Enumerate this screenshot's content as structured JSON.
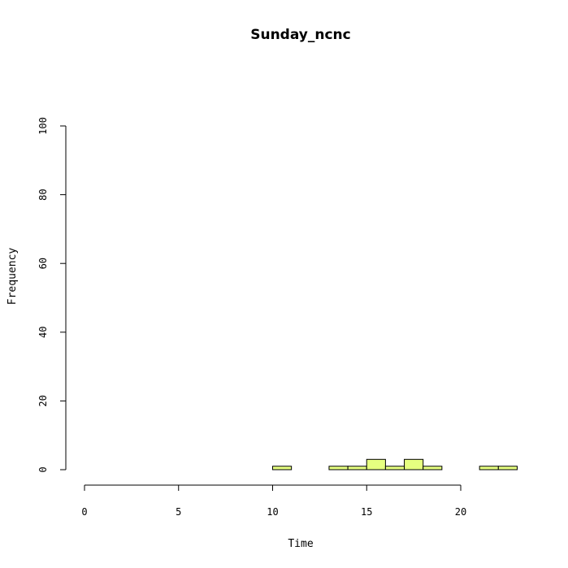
{
  "chart_data": {
    "type": "bar",
    "subtype": "histogram",
    "title": "Sunday_ncnc",
    "xlabel": "Time",
    "ylabel": "Frequency",
    "xlim": [
      0,
      24
    ],
    "ylim": [
      0,
      100
    ],
    "x_ticks": [
      0,
      5,
      10,
      15,
      20
    ],
    "y_ticks": [
      0,
      20,
      40,
      60,
      80,
      100
    ],
    "bin_edges": [
      0,
      1,
      2,
      3,
      4,
      5,
      6,
      7,
      8,
      9,
      10,
      11,
      12,
      13,
      14,
      15,
      16,
      17,
      18,
      19,
      20,
      21,
      22,
      23
    ],
    "values": [
      0,
      0,
      0,
      0,
      0,
      0,
      0,
      0,
      0,
      0,
      1,
      0,
      0,
      1,
      1,
      3,
      1,
      3,
      1,
      0,
      0,
      1,
      1
    ],
    "bar_color": "#E6FF80",
    "grid": false
  }
}
